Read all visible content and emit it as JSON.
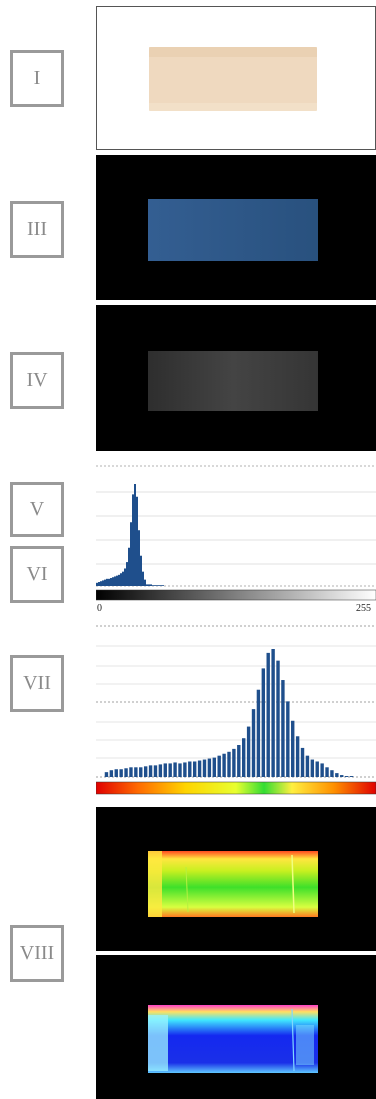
{
  "labels": {
    "i": "I",
    "iii": "III",
    "iv": "IV",
    "v": "V",
    "vi": "VI",
    "vii": "VII",
    "viii": "VIII"
  },
  "colors": {
    "panel_i_bg": "#ffffff",
    "panel_i_sample": "#efd9bf",
    "panel_iii_sample": "#2e5887",
    "panel_iv_sample": "#3a3a3a",
    "histogram_bar": "#1f4f8c"
  },
  "histogram_v": {
    "axis_min_label": "0",
    "axis_max_label": "255",
    "values": [
      4,
      5,
      6,
      7,
      8,
      9,
      9,
      10,
      11,
      12,
      13,
      14,
      16,
      18,
      22,
      30,
      48,
      80,
      115,
      128,
      112,
      70,
      38,
      18,
      8,
      2,
      2,
      2,
      1,
      1,
      1,
      1,
      1,
      1,
      0,
      0,
      0,
      0,
      0,
      0
    ]
  },
  "histogram_vii": {
    "values": [
      5,
      7,
      8,
      8,
      9,
      10,
      10,
      10,
      11,
      12,
      12,
      13,
      14,
      14,
      15,
      14,
      15,
      16,
      16,
      17,
      18,
      19,
      20,
      22,
      24,
      26,
      29,
      33,
      40,
      52,
      70,
      90,
      112,
      128,
      132,
      120,
      100,
      78,
      58,
      42,
      30,
      22,
      18,
      16,
      14,
      10,
      7,
      4,
      2,
      1,
      1
    ]
  }
}
